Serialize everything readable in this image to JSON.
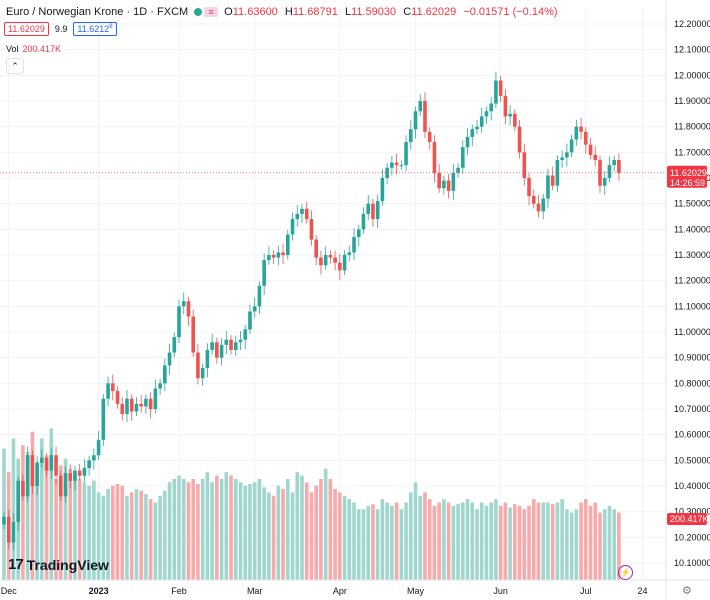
{
  "header": {
    "symbol_title": "Euro / Norwegian Krone · 1D · FXCM",
    "ohlc": [
      {
        "label": "O",
        "value": "11.63600"
      },
      {
        "label": "H",
        "value": "11.68791"
      },
      {
        "label": "L",
        "value": "11.59030"
      },
      {
        "label": "C",
        "value": "11.62029"
      }
    ],
    "change": "−0.01571 (−0.14%)",
    "sell_price": "11.62029",
    "spread": "9.9",
    "buy_price": "11.6212",
    "buy_price_sup": "8"
  },
  "volume": {
    "label": "Vol",
    "value": "200.417K",
    "collapse_icon": "chevron-up-icon"
  },
  "branding": {
    "logo": "TradingView",
    "mark": "17"
  },
  "colors": {
    "up": "#26a69a",
    "down": "#ef5350",
    "vol_up": "#9fd7cf",
    "vol_down": "#f7aaa9",
    "last_price": "#f23645"
  },
  "last_price_label": {
    "price": "11.62029",
    "countdown": "14:26:59"
  },
  "volume_label": "200.417K",
  "chart_data": {
    "type": "candlestick",
    "title": "Euro / Norwegian Krone · 1D · FXCM",
    "ylim": [
      10.05,
      12.2
    ],
    "y_ticks": [
      "12.20000",
      "12.10000",
      "12.00000",
      "11.90000",
      "11.80000",
      "11.70000",
      "11.60000",
      "11.50000",
      "11.40000",
      "11.30000",
      "11.20000",
      "11.10000",
      "11.00000",
      "10.90000",
      "10.80000",
      "10.70000",
      "10.60000",
      "10.50000",
      "10.40000",
      "10.30000",
      "10.20000",
      "10.10000"
    ],
    "x_tick_labels": [
      {
        "label": "Dec",
        "index": 1
      },
      {
        "label": "2023",
        "index": 20
      },
      {
        "label": "Feb",
        "index": 37
      },
      {
        "label": "Mar",
        "index": 53
      },
      {
        "label": "Apr",
        "index": 71
      },
      {
        "label": "May",
        "index": 87
      },
      {
        "label": "Jun",
        "index": 105
      },
      {
        "label": "Jul",
        "index": 123
      },
      {
        "label": "24",
        "index": 135
      }
    ],
    "closes": [
      10.28,
      10.18,
      10.26,
      10.42,
      10.36,
      10.52,
      10.4,
      10.49,
      10.51,
      10.46,
      10.52,
      10.44,
      10.36,
      10.45,
      10.42,
      10.46,
      10.44,
      10.47,
      10.5,
      10.52,
      10.58,
      10.74,
      10.8,
      10.77,
      10.72,
      10.68,
      10.74,
      10.69,
      10.72,
      10.71,
      10.74,
      10.7,
      10.78,
      10.8,
      10.87,
      10.92,
      10.98,
      11.1,
      11.12,
      11.06,
      10.92,
      10.82,
      10.86,
      10.93,
      10.96,
      10.9,
      10.95,
      10.97,
      10.93,
      10.96,
      10.97,
      11.01,
      11.08,
      11.1,
      11.18,
      11.28,
      11.3,
      11.29,
      11.31,
      11.3,
      11.38,
      11.44,
      11.46,
      11.48,
      11.44,
      11.36,
      11.29,
      11.26,
      11.3,
      11.29,
      11.27,
      11.24,
      11.3,
      11.31,
      11.37,
      11.4,
      11.46,
      11.5,
      11.44,
      11.51,
      11.6,
      11.64,
      11.66,
      11.65,
      11.65,
      11.74,
      11.79,
      11.86,
      11.9,
      11.78,
      11.74,
      11.62,
      11.56,
      11.59,
      11.55,
      11.62,
      11.64,
      11.72,
      11.76,
      11.79,
      11.8,
      11.84,
      11.86,
      11.89,
      11.98,
      11.92,
      11.84,
      11.85,
      11.8,
      11.7,
      11.6,
      11.53,
      11.5,
      11.47,
      11.52,
      11.61,
      11.57,
      11.67,
      11.68,
      11.7,
      11.75,
      11.8,
      11.78,
      11.73,
      11.69,
      11.67,
      11.57,
      11.6,
      11.65,
      11.67,
      11.62
    ],
    "volumes": [
      390,
      320,
      420,
      360,
      400,
      380,
      440,
      350,
      420,
      370,
      450,
      300,
      340,
      360,
      330,
      310,
      300,
      290,
      280,
      295,
      260,
      250,
      270,
      280,
      285,
      280,
      250,
      260,
      270,
      265,
      255,
      240,
      230,
      250,
      265,
      290,
      300,
      310,
      300,
      290,
      300,
      285,
      300,
      320,
      290,
      310,
      300,
      320,
      310,
      300,
      290,
      280,
      285,
      290,
      300,
      275,
      260,
      250,
      280,
      270,
      300,
      260,
      320,
      310,
      290,
      260,
      280,
      300,
      330,
      300,
      270,
      260,
      250,
      240,
      230,
      210,
      210,
      220,
      225,
      210,
      240,
      230,
      220,
      230,
      210,
      230,
      260,
      290,
      250,
      260,
      240,
      220,
      230,
      240,
      230,
      220,
      225,
      230,
      240,
      230,
      210,
      230,
      220,
      230,
      240,
      220,
      230,
      215,
      225,
      220,
      210,
      220,
      240,
      230,
      230,
      230,
      225,
      230,
      240,
      210,
      200,
      210,
      230,
      240,
      220,
      230,
      200,
      210,
      220,
      210,
      200
    ]
  }
}
